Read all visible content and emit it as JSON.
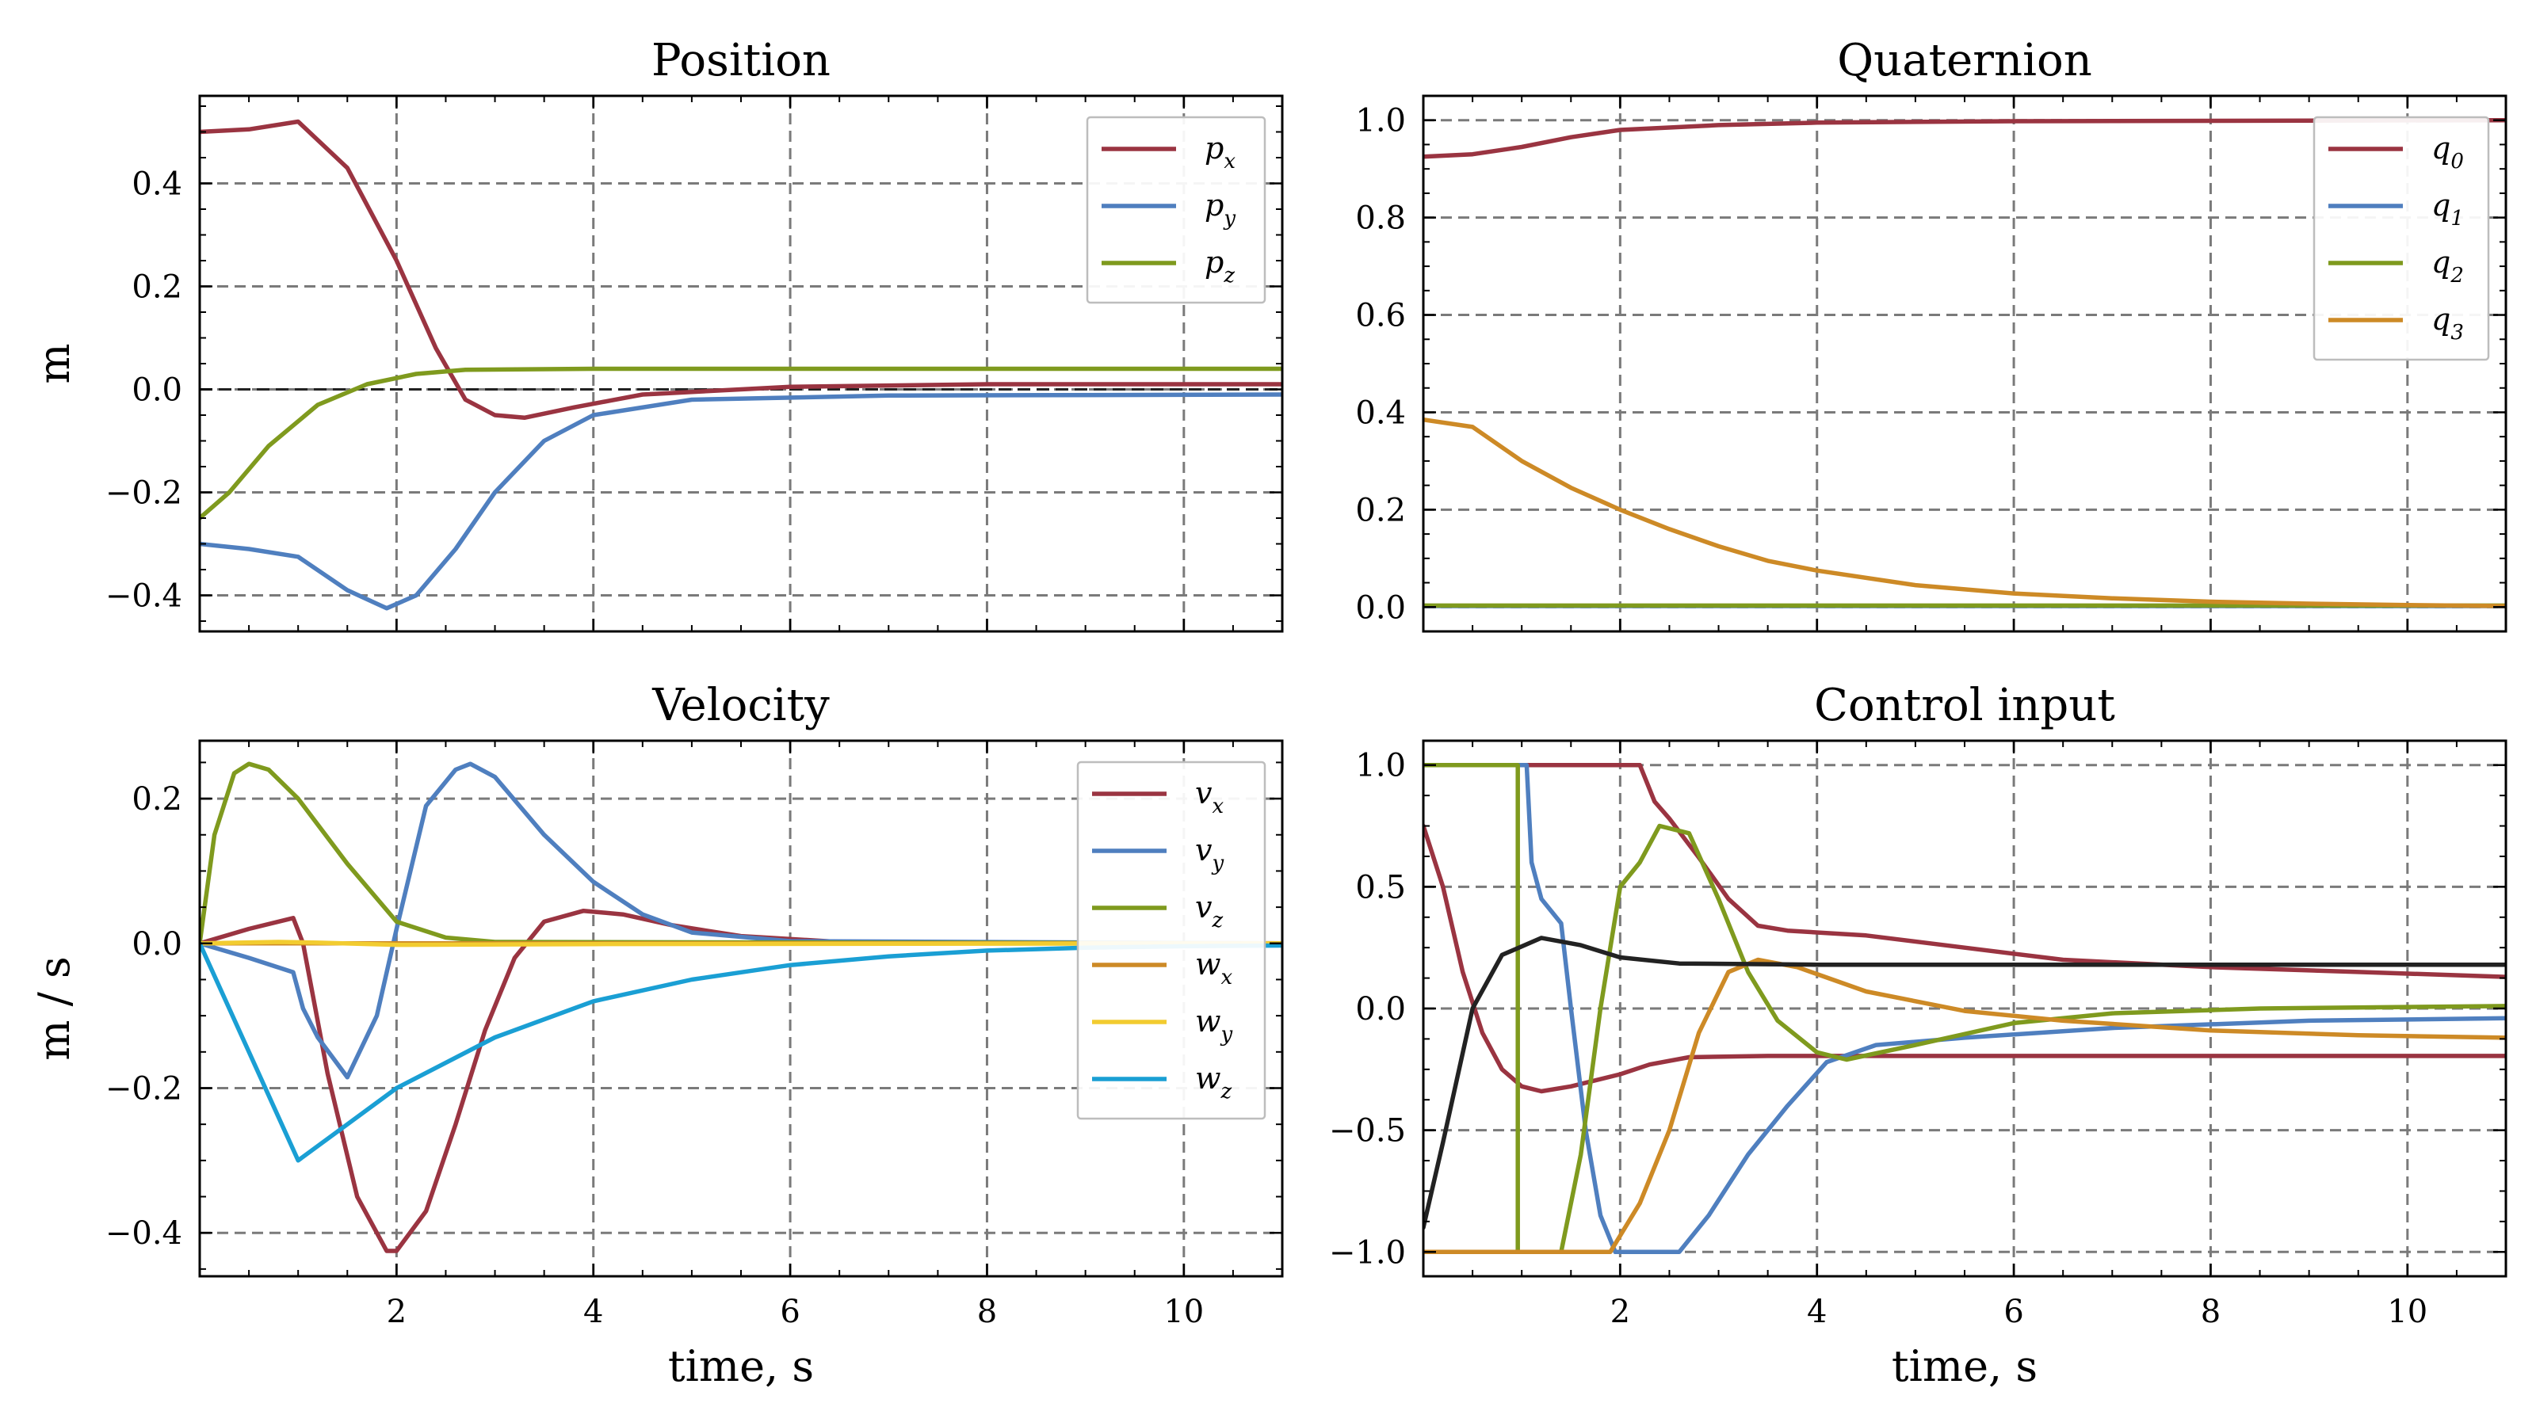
{
  "chart_data": [
    {
      "type": "line",
      "title": "Position",
      "ylabel": "m",
      "xlabel": "",
      "xlim": [
        0,
        11
      ],
      "ylim": [
        -0.47,
        0.57
      ],
      "xticks": [
        2,
        4,
        6,
        8,
        10
      ],
      "yticks": [
        -0.4,
        -0.2,
        0.0,
        0.2,
        0.4
      ],
      "ytick_labels": [
        "−0.4",
        "−0.2",
        "0.0",
        "0.2",
        "0.4"
      ],
      "show_xtick_labels": false,
      "grid": true,
      "hline": 0,
      "legend": "top-right",
      "series": [
        {
          "name": "p",
          "sub": "x",
          "color": "#9a3441",
          "points": [
            [
              0,
              0.5
            ],
            [
              0.5,
              0.505
            ],
            [
              1.0,
              0.52
            ],
            [
              1.5,
              0.43
            ],
            [
              2.0,
              0.25
            ],
            [
              2.4,
              0.08
            ],
            [
              2.7,
              -0.02
            ],
            [
              3.0,
              -0.05
            ],
            [
              3.3,
              -0.055
            ],
            [
              3.8,
              -0.035
            ],
            [
              4.5,
              -0.01
            ],
            [
              6,
              0.005
            ],
            [
              8,
              0.01
            ],
            [
              11,
              0.01
            ]
          ]
        },
        {
          "name": "p",
          "sub": "y",
          "color": "#4f7fbf",
          "points": [
            [
              0,
              -0.3
            ],
            [
              0.5,
              -0.31
            ],
            [
              1.0,
              -0.325
            ],
            [
              1.5,
              -0.39
            ],
            [
              1.9,
              -0.425
            ],
            [
              2.2,
              -0.4
            ],
            [
              2.6,
              -0.31
            ],
            [
              3.0,
              -0.2
            ],
            [
              3.5,
              -0.1
            ],
            [
              4.0,
              -0.05
            ],
            [
              5,
              -0.02
            ],
            [
              7,
              -0.012
            ],
            [
              11,
              -0.01
            ]
          ]
        },
        {
          "name": "p",
          "sub": "z",
          "color": "#7f9a1e",
          "points": [
            [
              0,
              -0.25
            ],
            [
              0.3,
              -0.2
            ],
            [
              0.7,
              -0.11
            ],
            [
              1.2,
              -0.03
            ],
            [
              1.7,
              0.01
            ],
            [
              2.2,
              0.03
            ],
            [
              2.7,
              0.038
            ],
            [
              4,
              0.04
            ],
            [
              11,
              0.04
            ]
          ]
        }
      ]
    },
    {
      "type": "line",
      "title": "Quaternion",
      "ylabel": "",
      "xlabel": "",
      "xlim": [
        0,
        11
      ],
      "ylim": [
        -0.05,
        1.05
      ],
      "xticks": [
        2,
        4,
        6,
        8,
        10
      ],
      "yticks": [
        0.0,
        0.2,
        0.4,
        0.6,
        0.8,
        1.0
      ],
      "ytick_labels": [
        "0.0",
        "0.2",
        "0.4",
        "0.6",
        "0.8",
        "1.0"
      ],
      "show_xtick_labels": false,
      "grid": true,
      "legend": "top-right",
      "series": [
        {
          "name": "q",
          "sub": "0",
          "color": "#9a3441",
          "points": [
            [
              0,
              0.925
            ],
            [
              0.5,
              0.93
            ],
            [
              1.0,
              0.945
            ],
            [
              1.5,
              0.965
            ],
            [
              2.0,
              0.98
            ],
            [
              3,
              0.99
            ],
            [
              4,
              0.995
            ],
            [
              6,
              0.998
            ],
            [
              11,
              1.0
            ]
          ]
        },
        {
          "name": "q",
          "sub": "1",
          "color": "#4f7fbf",
          "points": [
            [
              0,
              0.002
            ],
            [
              11,
              0.002
            ]
          ]
        },
        {
          "name": "q",
          "sub": "2",
          "color": "#7f9a1e",
          "points": [
            [
              0,
              0.003
            ],
            [
              11,
              0.003
            ]
          ]
        },
        {
          "name": "q",
          "sub": "3",
          "color": "#cd8a26",
          "points": [
            [
              0,
              0.385
            ],
            [
              0.5,
              0.37
            ],
            [
              1.0,
              0.3
            ],
            [
              1.5,
              0.245
            ],
            [
              2.0,
              0.2
            ],
            [
              2.5,
              0.16
            ],
            [
              3.0,
              0.125
            ],
            [
              3.5,
              0.095
            ],
            [
              4.0,
              0.075
            ],
            [
              5.0,
              0.045
            ],
            [
              6.0,
              0.028
            ],
            [
              7.0,
              0.018
            ],
            [
              8.0,
              0.011
            ],
            [
              9.0,
              0.007
            ],
            [
              10,
              0.004
            ],
            [
              11,
              0.002
            ]
          ]
        }
      ]
    },
    {
      "type": "line",
      "title": "Velocity",
      "ylabel": "m / s",
      "xlabel": "time, s",
      "xlim": [
        0,
        11
      ],
      "ylim": [
        -0.46,
        0.28
      ],
      "xticks": [
        2,
        4,
        6,
        8,
        10
      ],
      "yticks": [
        -0.4,
        -0.2,
        0.0,
        0.2
      ],
      "ytick_labels": [
        "−0.4",
        "−0.2",
        "0.0",
        "0.2"
      ],
      "show_xtick_labels": true,
      "grid": true,
      "legend": "top-right",
      "series": [
        {
          "name": "v",
          "sub": "x",
          "color": "#9a3441",
          "points": [
            [
              0,
              0
            ],
            [
              0.5,
              0.02
            ],
            [
              0.95,
              0.035
            ],
            [
              1.05,
              0.0
            ],
            [
              1.3,
              -0.18
            ],
            [
              1.6,
              -0.35
            ],
            [
              1.9,
              -0.425
            ],
            [
              2.0,
              -0.425
            ],
            [
              2.3,
              -0.37
            ],
            [
              2.6,
              -0.25
            ],
            [
              2.9,
              -0.12
            ],
            [
              3.2,
              -0.02
            ],
            [
              3.5,
              0.03
            ],
            [
              3.9,
              0.045
            ],
            [
              4.3,
              0.04
            ],
            [
              4.8,
              0.025
            ],
            [
              5.5,
              0.01
            ],
            [
              6.5,
              0.002
            ],
            [
              11,
              0
            ]
          ]
        },
        {
          "name": "v",
          "sub": "y",
          "color": "#4f7fbf",
          "points": [
            [
              0,
              0
            ],
            [
              0.5,
              -0.02
            ],
            [
              0.95,
              -0.04
            ],
            [
              1.05,
              -0.09
            ],
            [
              1.2,
              -0.13
            ],
            [
              1.5,
              -0.185
            ],
            [
              1.8,
              -0.1
            ],
            [
              2.0,
              0.02
            ],
            [
              2.3,
              0.19
            ],
            [
              2.6,
              0.24
            ],
            [
              2.75,
              0.248
            ],
            [
              3.0,
              0.23
            ],
            [
              3.5,
              0.15
            ],
            [
              4.0,
              0.085
            ],
            [
              4.5,
              0.04
            ],
            [
              5.0,
              0.015
            ],
            [
              6.0,
              0.003
            ],
            [
              11,
              0
            ]
          ]
        },
        {
          "name": "v",
          "sub": "z",
          "color": "#7f9a1e",
          "points": [
            [
              0,
              0
            ],
            [
              0.15,
              0.15
            ],
            [
              0.35,
              0.235
            ],
            [
              0.5,
              0.248
            ],
            [
              0.7,
              0.24
            ],
            [
              1.0,
              0.2
            ],
            [
              1.5,
              0.11
            ],
            [
              2.0,
              0.03
            ],
            [
              2.5,
              0.008
            ],
            [
              3.0,
              0.002
            ],
            [
              11,
              0
            ]
          ]
        },
        {
          "name": "w",
          "sub": "x",
          "color": "#cd8a26",
          "points": [
            [
              0,
              0
            ],
            [
              11,
              0
            ]
          ]
        },
        {
          "name": "w",
          "sub": "y",
          "color": "#f2cc30",
          "points": [
            [
              0,
              0.0
            ],
            [
              0.8,
              0.002
            ],
            [
              1.2,
              0.001
            ],
            [
              2,
              -0.002
            ],
            [
              4,
              -0.001
            ],
            [
              11,
              0
            ]
          ]
        },
        {
          "name": "w",
          "sub": "z",
          "color": "#1a9fd4",
          "points": [
            [
              0,
              0
            ],
            [
              0.5,
              -0.15
            ],
            [
              1.0,
              -0.3
            ],
            [
              1.5,
              -0.25
            ],
            [
              2.0,
              -0.2
            ],
            [
              3.0,
              -0.13
            ],
            [
              4.0,
              -0.08
            ],
            [
              5.0,
              -0.05
            ],
            [
              6.0,
              -0.03
            ],
            [
              7.0,
              -0.018
            ],
            [
              8.0,
              -0.01
            ],
            [
              9.0,
              -0.006
            ],
            [
              10,
              -0.004
            ],
            [
              11,
              -0.003
            ]
          ]
        }
      ]
    },
    {
      "type": "line",
      "title": "Control input",
      "ylabel": "",
      "xlabel": "time, s",
      "xlim": [
        0,
        11
      ],
      "ylim": [
        -1.1,
        1.1
      ],
      "xticks": [
        2,
        4,
        6,
        8,
        10
      ],
      "yticks": [
        -1.0,
        -0.5,
        0.0,
        0.5,
        1.0
      ],
      "ytick_labels": [
        "−1.0",
        "−0.5",
        "0.0",
        "0.5",
        "1.0"
      ],
      "show_xtick_labels": true,
      "grid": true,
      "series": [
        {
          "color": "#9a3441",
          "points": [
            [
              0,
              0.75
            ],
            [
              0.2,
              0.5
            ],
            [
              0.4,
              0.15
            ],
            [
              0.6,
              -0.1
            ],
            [
              0.8,
              -0.25
            ],
            [
              1.0,
              -0.32
            ],
            [
              1.2,
              -0.34
            ],
            [
              1.5,
              -0.32
            ],
            [
              2.0,
              -0.27
            ],
            [
              2.3,
              -0.23
            ],
            [
              2.7,
              -0.2
            ],
            [
              3.5,
              -0.195
            ],
            [
              5,
              -0.195
            ],
            [
              11,
              -0.195
            ]
          ]
        },
        {
          "color": "#9a3441",
          "points": [
            [
              1.0,
              1.0
            ],
            [
              2.2,
              1.0
            ],
            [
              2.35,
              0.85
            ],
            [
              2.5,
              0.78
            ],
            [
              2.8,
              0.62
            ],
            [
              3.1,
              0.45
            ],
            [
              3.4,
              0.34
            ],
            [
              3.7,
              0.32
            ],
            [
              4.5,
              0.3
            ],
            [
              5.5,
              0.25
            ],
            [
              6.5,
              0.2
            ],
            [
              8,
              0.17
            ],
            [
              9.5,
              0.15
            ],
            [
              11,
              0.13
            ]
          ]
        },
        {
          "color": "#4f7fbf",
          "points": [
            [
              0,
              1.0
            ],
            [
              1.05,
              1.0
            ],
            [
              1.1,
              0.6
            ],
            [
              1.2,
              0.45
            ],
            [
              1.4,
              0.35
            ],
            [
              1.5,
              0.0
            ],
            [
              1.65,
              -0.5
            ],
            [
              1.8,
              -0.85
            ],
            [
              1.95,
              -1.0
            ],
            [
              2.6,
              -1.0
            ],
            [
              2.9,
              -0.85
            ],
            [
              3.3,
              -0.6
            ],
            [
              3.7,
              -0.4
            ],
            [
              4.1,
              -0.22
            ],
            [
              4.6,
              -0.15
            ],
            [
              5.5,
              -0.12
            ],
            [
              7,
              -0.08
            ],
            [
              9,
              -0.05
            ],
            [
              11,
              -0.04
            ]
          ]
        },
        {
          "color": "#7f9a1e",
          "points": [
            [
              0,
              1.0
            ],
            [
              0.96,
              1.0
            ],
            [
              0.96,
              -1.0
            ],
            [
              1.4,
              -1.0
            ],
            [
              1.6,
              -0.6
            ],
            [
              1.8,
              0.0
            ],
            [
              2.0,
              0.5
            ],
            [
              2.2,
              0.6
            ],
            [
              2.4,
              0.75
            ],
            [
              2.7,
              0.72
            ],
            [
              3.0,
              0.45
            ],
            [
              3.3,
              0.15
            ],
            [
              3.6,
              -0.05
            ],
            [
              4.0,
              -0.18
            ],
            [
              4.3,
              -0.21
            ],
            [
              5.0,
              -0.15
            ],
            [
              6.0,
              -0.06
            ],
            [
              7.0,
              -0.02
            ],
            [
              8.5,
              0.0
            ],
            [
              11,
              0.01
            ]
          ]
        },
        {
          "color": "#cd8a26",
          "points": [
            [
              0,
              -1.0
            ],
            [
              1.9,
              -1.0
            ],
            [
              2.2,
              -0.8
            ],
            [
              2.5,
              -0.5
            ],
            [
              2.8,
              -0.1
            ],
            [
              3.1,
              0.15
            ],
            [
              3.4,
              0.2
            ],
            [
              3.8,
              0.17
            ],
            [
              4.5,
              0.07
            ],
            [
              5.5,
              -0.01
            ],
            [
              6.5,
              -0.05
            ],
            [
              8,
              -0.09
            ],
            [
              9.5,
              -0.11
            ],
            [
              11,
              -0.12
            ]
          ]
        },
        {
          "color": "#222222",
          "points": [
            [
              0,
              -0.9
            ],
            [
              0.2,
              -0.55
            ],
            [
              0.5,
              0.0
            ],
            [
              0.8,
              0.22
            ],
            [
              1.2,
              0.29
            ],
            [
              1.6,
              0.26
            ],
            [
              2.0,
              0.21
            ],
            [
              2.6,
              0.185
            ],
            [
              4,
              0.18
            ],
            [
              6,
              0.18
            ],
            [
              11,
              0.18
            ]
          ]
        }
      ]
    }
  ]
}
